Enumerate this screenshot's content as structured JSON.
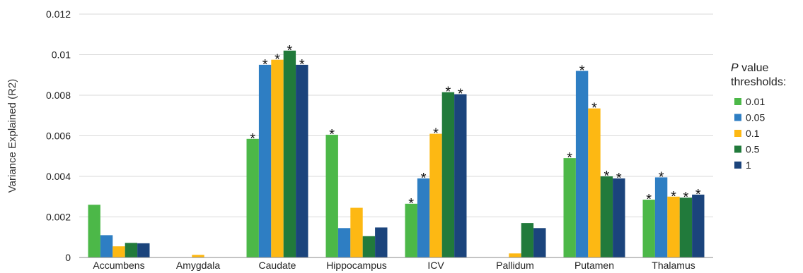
{
  "chart_data": {
    "type": "bar",
    "ylabel": "Variance Explained (R2)",
    "ylim": [
      0,
      0.012
    ],
    "yticks": [
      "0",
      "0.002",
      "0.004",
      "0.006",
      "0.008",
      "0.01",
      "0.012"
    ],
    "ytick_values": [
      0,
      0.002,
      0.004,
      0.006,
      0.008,
      0.01,
      0.012
    ],
    "grid": true,
    "categories": [
      "Accumbens",
      "Amygdala",
      "Caudate",
      "Hippocampus",
      "ICV",
      "Pallidum",
      "Putamen",
      "Thalamus"
    ],
    "legend": {
      "title_italic": "P",
      "title_rest": " value",
      "title_line2": "thresholds:",
      "placement": "right"
    },
    "series": [
      {
        "name": "0.01",
        "color": "#4cb848",
        "values": [
          0.0026,
          0.0,
          0.00585,
          0.00605,
          0.00265,
          0.0,
          0.0049,
          0.00285
        ],
        "significant": [
          false,
          false,
          true,
          true,
          true,
          false,
          true,
          true
        ]
      },
      {
        "name": "0.05",
        "color": "#2e7ec3",
        "values": [
          0.0011,
          0.0,
          0.0095,
          0.00145,
          0.0039,
          0.0,
          0.0092,
          0.00395
        ],
        "significant": [
          false,
          false,
          true,
          false,
          true,
          false,
          true,
          true
        ]
      },
      {
        "name": "0.1",
        "color": "#fdb813",
        "values": [
          0.00055,
          0.00013,
          0.00975,
          0.00245,
          0.0061,
          0.0002,
          0.00735,
          0.003
        ],
        "significant": [
          false,
          false,
          true,
          false,
          true,
          false,
          true,
          true
        ]
      },
      {
        "name": "0.5",
        "color": "#217a3b",
        "values": [
          0.00072,
          0.0,
          0.0102,
          0.00105,
          0.00815,
          0.0017,
          0.004,
          0.00295
        ],
        "significant": [
          false,
          false,
          true,
          false,
          true,
          false,
          true,
          true
        ]
      },
      {
        "name": "1",
        "color": "#1b447c",
        "values": [
          0.0007,
          0.0,
          0.0095,
          0.00148,
          0.00805,
          0.00145,
          0.0039,
          0.0031
        ],
        "significant": [
          false,
          false,
          true,
          false,
          true,
          false,
          true,
          true
        ]
      }
    ],
    "significance_marker": "*"
  }
}
